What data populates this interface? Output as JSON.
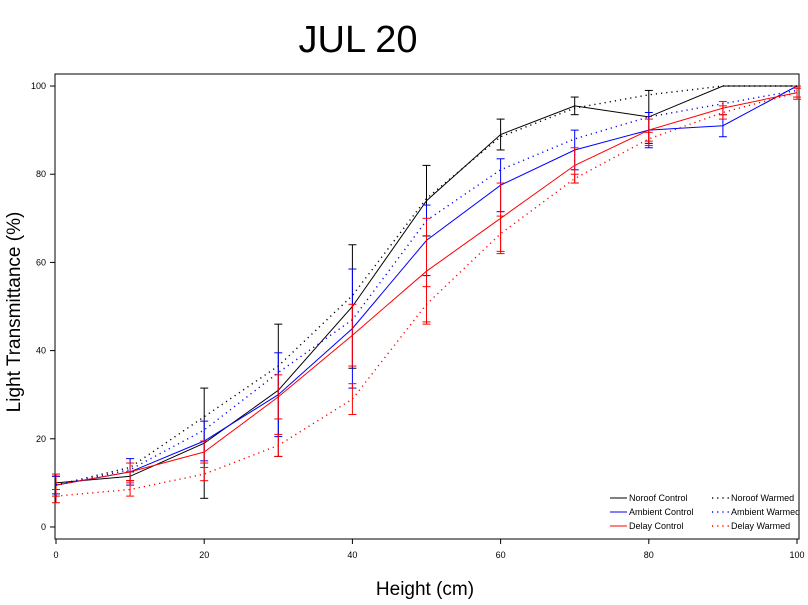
{
  "chart_data": {
    "type": "line",
    "title": "JUL 20",
    "xlabel": "Height (cm)",
    "ylabel": "Light Transmittance (%)",
    "xlim": [
      0,
      100
    ],
    "ylim": [
      -2.5,
      102.5
    ],
    "x_ticks": [
      0,
      20,
      40,
      60,
      80,
      100
    ],
    "y_ticks": [
      0,
      20,
      40,
      60,
      80,
      100
    ],
    "x_tick_labels": [
      "0",
      "20",
      "40",
      "60",
      "80",
      "100"
    ],
    "y_tick_labels": [
      "0",
      "20",
      "40",
      "60",
      "80",
      "100"
    ],
    "x": [
      0,
      10,
      20,
      30,
      40,
      50,
      60,
      70,
      80,
      90,
      100
    ],
    "grid": false,
    "legend_position": "bottom-right",
    "series": [
      {
        "name": "Noroof Control",
        "color": "#000000",
        "style": "solid",
        "values": [
          10,
          11.5,
          19,
          31,
          50,
          74,
          89,
          95.5,
          93,
          100,
          100
        ],
        "errors": [
          1.5,
          1,
          12.5,
          15,
          14,
          8,
          3.5,
          2,
          6,
          0,
          0
        ]
      },
      {
        "name": "Ambient Control",
        "color": "#0000ff",
        "style": "solid",
        "values": [
          9.5,
          12.5,
          19.5,
          30,
          45,
          65,
          77.5,
          85.5,
          90,
          91,
          100
        ],
        "errors": [
          2,
          3,
          4.5,
          9.5,
          13.5,
          8,
          6,
          4.5,
          4,
          2.5,
          0
        ]
      },
      {
        "name": "Delay Control",
        "color": "#ff0000",
        "style": "solid",
        "values": [
          9.5,
          12.5,
          17,
          29.5,
          43.5,
          58,
          70,
          82,
          90,
          95,
          98.5
        ],
        "errors": [
          2.5,
          2,
          2.5,
          5,
          7,
          12,
          8,
          4,
          2.5,
          1.5,
          1.5
        ]
      },
      {
        "name": "Noroof Warmed",
        "color": "#000000",
        "style": "dotted",
        "values": [
          9.5,
          13.5,
          25,
          36.5,
          52.5,
          74.5,
          88.5,
          95,
          98,
          100,
          100
        ],
        "errors": [
          0,
          0,
          0,
          0,
          0,
          0,
          0,
          0,
          0,
          0,
          0
        ]
      },
      {
        "name": "Ambient Warmed",
        "color": "#0000ff",
        "style": "dotted",
        "values": [
          9.5,
          13,
          22,
          35,
          47,
          69.5,
          81,
          88,
          93,
          96,
          99
        ],
        "errors": [
          0,
          0,
          0,
          0,
          0,
          0,
          0,
          0,
          0,
          0,
          0
        ]
      },
      {
        "name": "Delay Warmed",
        "color": "#ff0000",
        "style": "dotted",
        "values": [
          7,
          8.5,
          12,
          18.5,
          29,
          50.5,
          66.5,
          79,
          88,
          94,
          98.5
        ],
        "errors": [
          1.5,
          1.5,
          1.5,
          2.5,
          3.5,
          4,
          4,
          1,
          1.5,
          1.5,
          1
        ]
      }
    ]
  }
}
